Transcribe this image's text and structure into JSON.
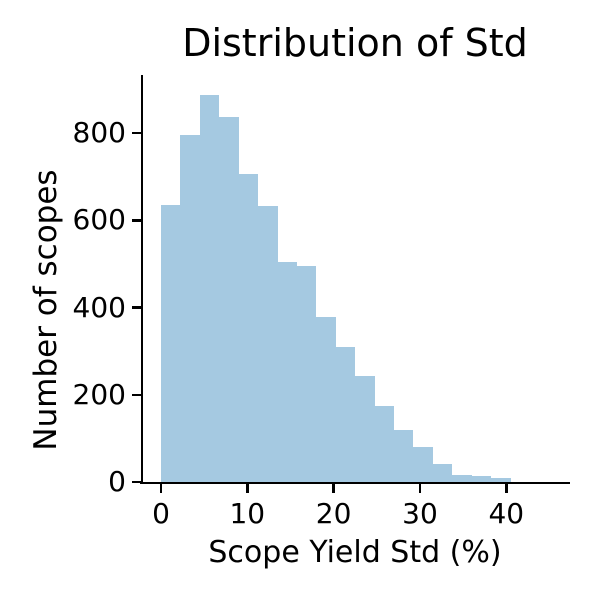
{
  "chart_data": {
    "type": "bar",
    "subtype": "histogram",
    "title": "Distribution of Std",
    "xlabel": "Scope Yield Std (%)",
    "ylabel": "Number of scopes",
    "bin_edges": [
      0,
      2.25,
      4.5,
      6.75,
      9,
      11.25,
      13.5,
      15.75,
      18,
      20.25,
      22.5,
      24.75,
      27,
      29.25,
      31.5,
      33.75,
      36,
      38.25,
      40.5
    ],
    "counts": [
      635,
      795,
      888,
      837,
      705,
      633,
      504,
      496,
      379,
      310,
      243,
      175,
      119,
      80,
      41,
      17,
      14,
      9
    ],
    "x_ticks": [
      0,
      10,
      20,
      30,
      40
    ],
    "y_ticks": [
      0,
      200,
      400,
      600,
      800
    ],
    "xlim": [
      -2.3,
      47.4
    ],
    "ylim": [
      0,
      935
    ],
    "bar_color": "#a5c9e1",
    "axis_color": "#000000",
    "background_color": "#ffffff",
    "grid": false,
    "legend": false
  }
}
